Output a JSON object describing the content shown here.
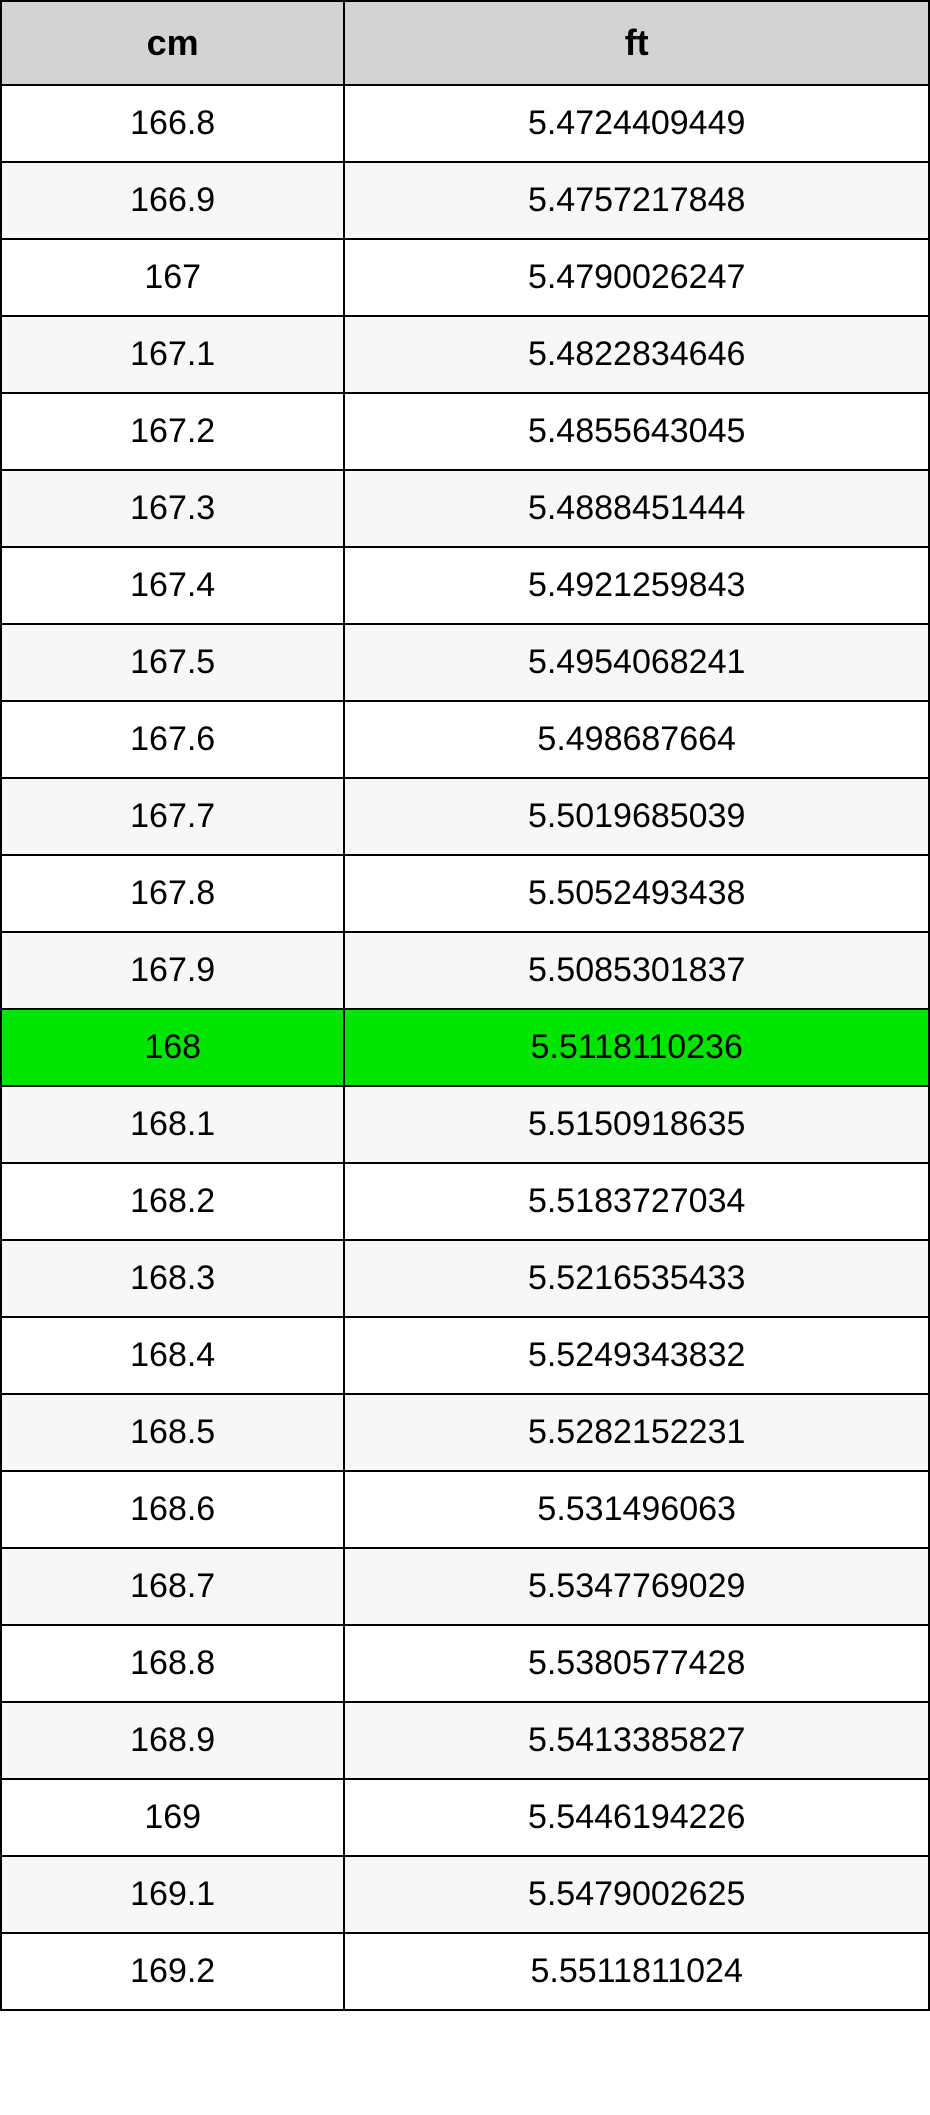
{
  "table": {
    "columns": [
      "cm",
      "ft"
    ],
    "header_bg": "#d3d3d3",
    "header_fontsize": 36,
    "cell_fontsize": 34,
    "border_color": "#000000",
    "alt_row_bg": "#f7f7f7",
    "highlight_bg": "#00e500",
    "highlight_index": 12,
    "rows": [
      {
        "cm": "166.8",
        "ft": "5.4724409449"
      },
      {
        "cm": "166.9",
        "ft": "5.4757217848"
      },
      {
        "cm": "167",
        "ft": "5.4790026247"
      },
      {
        "cm": "167.1",
        "ft": "5.4822834646"
      },
      {
        "cm": "167.2",
        "ft": "5.4855643045"
      },
      {
        "cm": "167.3",
        "ft": "5.4888451444"
      },
      {
        "cm": "167.4",
        "ft": "5.4921259843"
      },
      {
        "cm": "167.5",
        "ft": "5.4954068241"
      },
      {
        "cm": "167.6",
        "ft": "5.498687664"
      },
      {
        "cm": "167.7",
        "ft": "5.5019685039"
      },
      {
        "cm": "167.8",
        "ft": "5.5052493438"
      },
      {
        "cm": "167.9",
        "ft": "5.5085301837"
      },
      {
        "cm": "168",
        "ft": "5.5118110236"
      },
      {
        "cm": "168.1",
        "ft": "5.5150918635"
      },
      {
        "cm": "168.2",
        "ft": "5.5183727034"
      },
      {
        "cm": "168.3",
        "ft": "5.5216535433"
      },
      {
        "cm": "168.4",
        "ft": "5.5249343832"
      },
      {
        "cm": "168.5",
        "ft": "5.5282152231"
      },
      {
        "cm": "168.6",
        "ft": "5.531496063"
      },
      {
        "cm": "168.7",
        "ft": "5.5347769029"
      },
      {
        "cm": "168.8",
        "ft": "5.5380577428"
      },
      {
        "cm": "168.9",
        "ft": "5.5413385827"
      },
      {
        "cm": "169",
        "ft": "5.5446194226"
      },
      {
        "cm": "169.1",
        "ft": "5.5479002625"
      },
      {
        "cm": "169.2",
        "ft": "5.5511811024"
      }
    ]
  }
}
